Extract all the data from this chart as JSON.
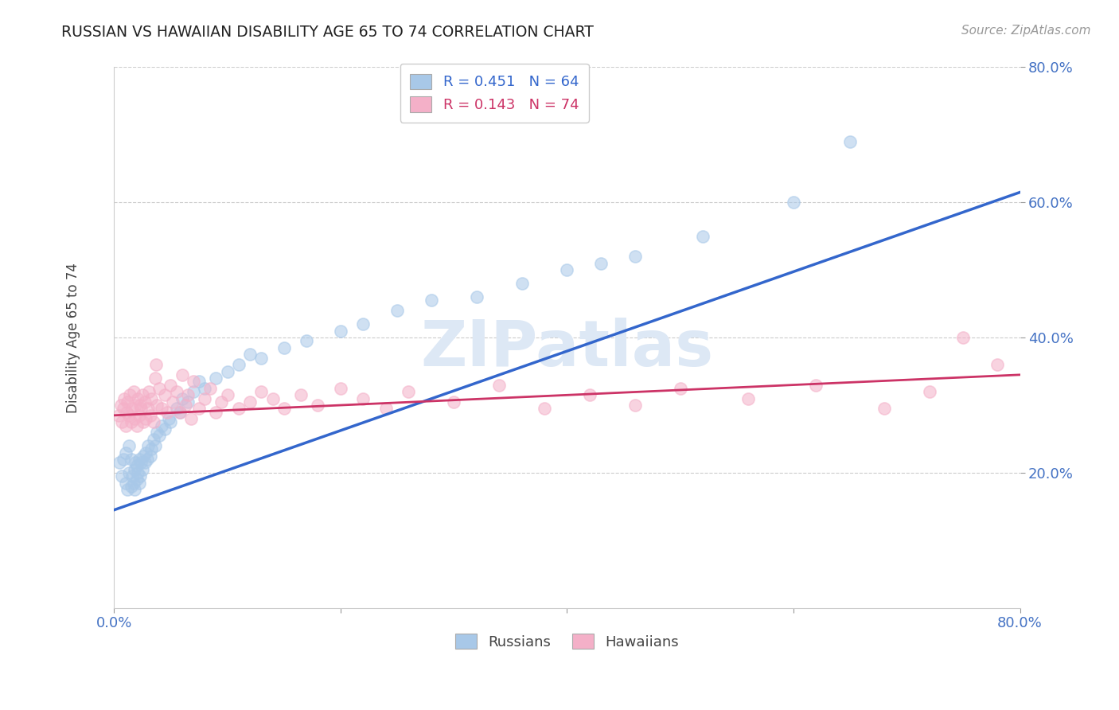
{
  "title": "RUSSIAN VS HAWAIIAN DISABILITY AGE 65 TO 74 CORRELATION CHART",
  "source": "Source: ZipAtlas.com",
  "ylabel": "Disability Age 65 to 74",
  "xlim": [
    0.0,
    0.8
  ],
  "ylim": [
    0.0,
    0.8
  ],
  "xticks": [
    0.0,
    0.2,
    0.4,
    0.6,
    0.8
  ],
  "xticklabels": [
    "0.0%",
    "",
    "",
    "",
    "80.0%"
  ],
  "yticks": [
    0.2,
    0.4,
    0.6,
    0.8
  ],
  "yticklabels": [
    "20.0%",
    "40.0%",
    "60.0%",
    "80.0%"
  ],
  "russian_R": 0.451,
  "russian_N": 64,
  "hawaiian_R": 0.143,
  "hawaiian_N": 74,
  "russian_color": "#a8c8e8",
  "hawaiian_color": "#f4b0c8",
  "russian_line_color": "#3366cc",
  "hawaiian_line_color": "#cc3366",
  "tick_color": "#4472c4",
  "background_color": "#ffffff",
  "grid_color": "#cccccc",
  "watermark_color": "#dde8f5",
  "russian_line_start_y": 0.145,
  "russian_line_end_y": 0.615,
  "hawaiian_line_start_y": 0.285,
  "hawaiian_line_end_y": 0.345,
  "russian_x": [
    0.005,
    0.007,
    0.008,
    0.01,
    0.01,
    0.012,
    0.013,
    0.013,
    0.015,
    0.015,
    0.016,
    0.017,
    0.018,
    0.018,
    0.019,
    0.02,
    0.02,
    0.021,
    0.022,
    0.022,
    0.023,
    0.024,
    0.025,
    0.026,
    0.027,
    0.028,
    0.029,
    0.03,
    0.032,
    0.033,
    0.035,
    0.036,
    0.038,
    0.04,
    0.042,
    0.045,
    0.048,
    0.05,
    0.055,
    0.058,
    0.06,
    0.065,
    0.07,
    0.075,
    0.08,
    0.09,
    0.1,
    0.11,
    0.12,
    0.13,
    0.15,
    0.17,
    0.2,
    0.22,
    0.25,
    0.28,
    0.32,
    0.36,
    0.4,
    0.43,
    0.46,
    0.52,
    0.6,
    0.65
  ],
  "russian_y": [
    0.215,
    0.195,
    0.22,
    0.185,
    0.23,
    0.175,
    0.2,
    0.24,
    0.18,
    0.22,
    0.195,
    0.185,
    0.175,
    0.205,
    0.215,
    0.19,
    0.21,
    0.2,
    0.185,
    0.22,
    0.195,
    0.215,
    0.205,
    0.225,
    0.215,
    0.23,
    0.22,
    0.24,
    0.225,
    0.235,
    0.25,
    0.24,
    0.26,
    0.255,
    0.27,
    0.265,
    0.28,
    0.275,
    0.295,
    0.29,
    0.31,
    0.305,
    0.32,
    0.335,
    0.325,
    0.34,
    0.35,
    0.36,
    0.375,
    0.37,
    0.385,
    0.395,
    0.41,
    0.42,
    0.44,
    0.455,
    0.46,
    0.48,
    0.5,
    0.51,
    0.52,
    0.55,
    0.6,
    0.69
  ],
  "hawaiian_x": [
    0.004,
    0.006,
    0.007,
    0.008,
    0.009,
    0.01,
    0.011,
    0.012,
    0.013,
    0.014,
    0.015,
    0.016,
    0.017,
    0.018,
    0.019,
    0.02,
    0.021,
    0.022,
    0.023,
    0.024,
    0.025,
    0.026,
    0.027,
    0.028,
    0.03,
    0.031,
    0.032,
    0.033,
    0.035,
    0.036,
    0.037,
    0.038,
    0.04,
    0.042,
    0.045,
    0.047,
    0.05,
    0.052,
    0.055,
    0.058,
    0.06,
    0.063,
    0.065,
    0.068,
    0.07,
    0.075,
    0.08,
    0.085,
    0.09,
    0.095,
    0.1,
    0.11,
    0.12,
    0.13,
    0.14,
    0.15,
    0.165,
    0.18,
    0.2,
    0.22,
    0.24,
    0.26,
    0.3,
    0.34,
    0.38,
    0.42,
    0.46,
    0.5,
    0.56,
    0.62,
    0.68,
    0.72,
    0.75,
    0.78
  ],
  "hawaiian_y": [
    0.285,
    0.3,
    0.275,
    0.295,
    0.31,
    0.27,
    0.29,
    0.305,
    0.285,
    0.315,
    0.275,
    0.295,
    0.32,
    0.28,
    0.3,
    0.27,
    0.31,
    0.285,
    0.3,
    0.295,
    0.315,
    0.275,
    0.305,
    0.28,
    0.295,
    0.32,
    0.285,
    0.31,
    0.275,
    0.34,
    0.36,
    0.3,
    0.325,
    0.295,
    0.315,
    0.29,
    0.33,
    0.305,
    0.32,
    0.29,
    0.345,
    0.3,
    0.315,
    0.28,
    0.335,
    0.295,
    0.31,
    0.325,
    0.29,
    0.305,
    0.315,
    0.295,
    0.305,
    0.32,
    0.31,
    0.295,
    0.315,
    0.3,
    0.325,
    0.31,
    0.295,
    0.32,
    0.305,
    0.33,
    0.295,
    0.315,
    0.3,
    0.325,
    0.31,
    0.33,
    0.295,
    0.32,
    0.4,
    0.36
  ]
}
